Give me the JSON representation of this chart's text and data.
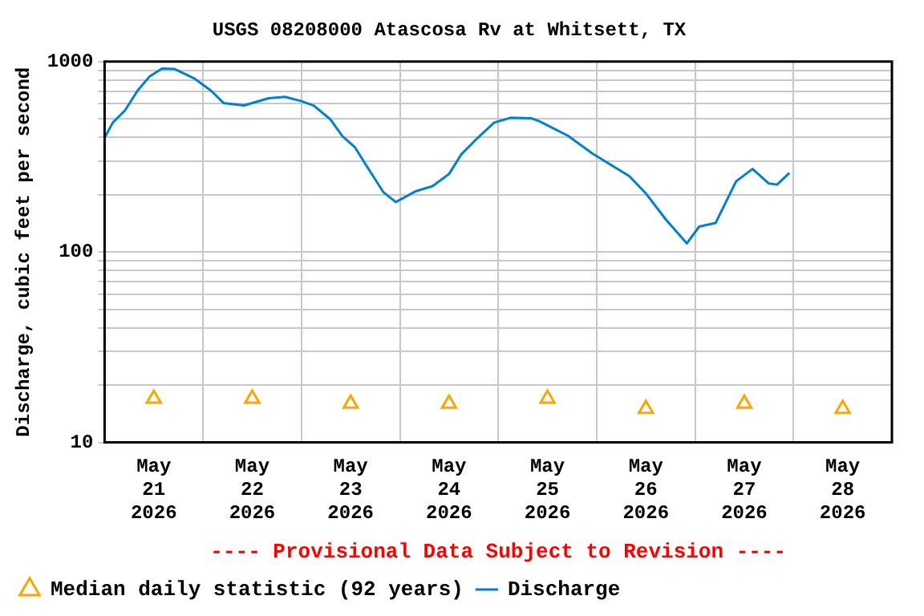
{
  "chart_data": {
    "type": "line",
    "title": "USGS 08208000 Atascosa Rv at Whitsett, TX",
    "ylabel": "Discharge, cubic feet per second",
    "annotations": [
      "---- Provisional Data Subject to Revision ----"
    ],
    "log": true,
    "grid": true,
    "legend": "bottom",
    "xlim": [
      "2026-05-21T00:00",
      "2026-05-29T00:00"
    ],
    "xticks": [
      {
        "value": "2026-05-21T00:00",
        "label": null
      },
      {
        "value": "2026-05-21T12:00",
        "label": "May\n21\n2026"
      },
      {
        "value": "2026-05-22T00:00",
        "label": null
      },
      {
        "value": "2026-05-22T12:00",
        "label": "May\n22\n2026"
      },
      {
        "value": "2026-05-23T00:00",
        "label": null
      },
      {
        "value": "2026-05-23T12:00",
        "label": "May\n23\n2026"
      },
      {
        "value": "2026-05-24T00:00",
        "label": null
      },
      {
        "value": "2026-05-24T12:00",
        "label": "May\n24\n2026"
      },
      {
        "value": "2026-05-25T00:00",
        "label": null
      },
      {
        "value": "2026-05-25T12:00",
        "label": "May\n25\n2026"
      },
      {
        "value": "2026-05-26T00:00",
        "label": null
      },
      {
        "value": "2026-05-26T12:00",
        "label": "May\n26\n2026"
      },
      {
        "value": "2026-05-27T00:00",
        "label": null
      },
      {
        "value": "2026-05-27T12:00",
        "label": "May\n27\n2026"
      },
      {
        "value": "2026-05-28T00:00",
        "label": null
      },
      {
        "value": "2026-05-28T12:00",
        "label": "May\n28\n2026"
      },
      {
        "value": "2026-05-29T00:00",
        "label": null
      }
    ],
    "ylim": [
      10,
      1000
    ],
    "yticks": [
      10,
      {
        "value": 20,
        "label": null
      },
      {
        "value": 30,
        "label": null
      },
      {
        "value": 40,
        "label": null
      },
      {
        "value": 50,
        "label": null
      },
      {
        "value": 60,
        "label": null
      },
      {
        "value": 70,
        "label": null
      },
      {
        "value": 80,
        "label": null
      },
      {
        "value": 90,
        "label": null
      },
      100,
      {
        "value": 200,
        "label": null
      },
      {
        "value": 300,
        "label": null
      },
      {
        "value": 400,
        "label": null
      },
      {
        "value": 500,
        "label": null
      },
      {
        "value": 600,
        "label": null
      },
      {
        "value": 700,
        "label": null
      },
      {
        "value": 800,
        "label": null
      },
      {
        "value": 900,
        "label": null
      },
      1000
    ],
    "series": [
      {
        "name": "Median daily statistic (92 years)",
        "type": "scatter",
        "marker": "triangle",
        "color": "#ffa500",
        "x": [
          "2026-05-21T12:00",
          "2026-05-22T12:00",
          "2026-05-23T12:00",
          "2026-05-24T12:00",
          "2026-05-25T12:00",
          "2026-05-26T12:00",
          "2026-05-27T12:00",
          "2026-05-28T12:00"
        ],
        "values": [
          17,
          17,
          16,
          16,
          17,
          15,
          16,
          15
        ]
      },
      {
        "name": "Discharge",
        "type": "line",
        "marker": "none",
        "line_style": "solid",
        "color": "#0080d0",
        "x": [
          "2026-05-21T00:00",
          "2026-05-21T02:00",
          "2026-05-21T05:00",
          "2026-05-21T08:00",
          "2026-05-21T11:00",
          "2026-05-21T14:00",
          "2026-05-21T17:00",
          "2026-05-21T22:00",
          "2026-05-22T02:00",
          "2026-05-22T05:00",
          "2026-05-22T10:00",
          "2026-05-22T16:00",
          "2026-05-22T20:00",
          "2026-05-23T00:00",
          "2026-05-23T03:00",
          "2026-05-23T07:00",
          "2026-05-23T10:00",
          "2026-05-23T13:00",
          "2026-05-23T16:00",
          "2026-05-23T20:00",
          "2026-05-23T23:00",
          "2026-05-24T04:00",
          "2026-05-24T08:00",
          "2026-05-24T12:00",
          "2026-05-24T15:00",
          "2026-05-24T19:00",
          "2026-05-24T23:00",
          "2026-05-25T03:00",
          "2026-05-25T08:00",
          "2026-05-25T10:00",
          "2026-05-25T17:00",
          "2026-05-25T23:00",
          "2026-05-26T08:00",
          "2026-05-26T12:00",
          "2026-05-26T17:00",
          "2026-05-26T22:00",
          "2026-05-27T01:00",
          "2026-05-27T05:00",
          "2026-05-27T10:00",
          "2026-05-27T14:00",
          "2026-05-27T18:00",
          "2026-05-27T20:00",
          "2026-05-27T23:00"
        ],
        "values": [
          398,
          478,
          555,
          702,
          837,
          920,
          915,
          813,
          702,
          606,
          588,
          642,
          653,
          620,
          588,
          499,
          405,
          356,
          281,
          206,
          183,
          209,
          222,
          257,
          326,
          398,
          478,
          507,
          504,
          486,
          408,
          329,
          250,
          203,
          147,
          111,
          136,
          142,
          235,
          273,
          229,
          226,
          260
        ]
      }
    ]
  }
}
